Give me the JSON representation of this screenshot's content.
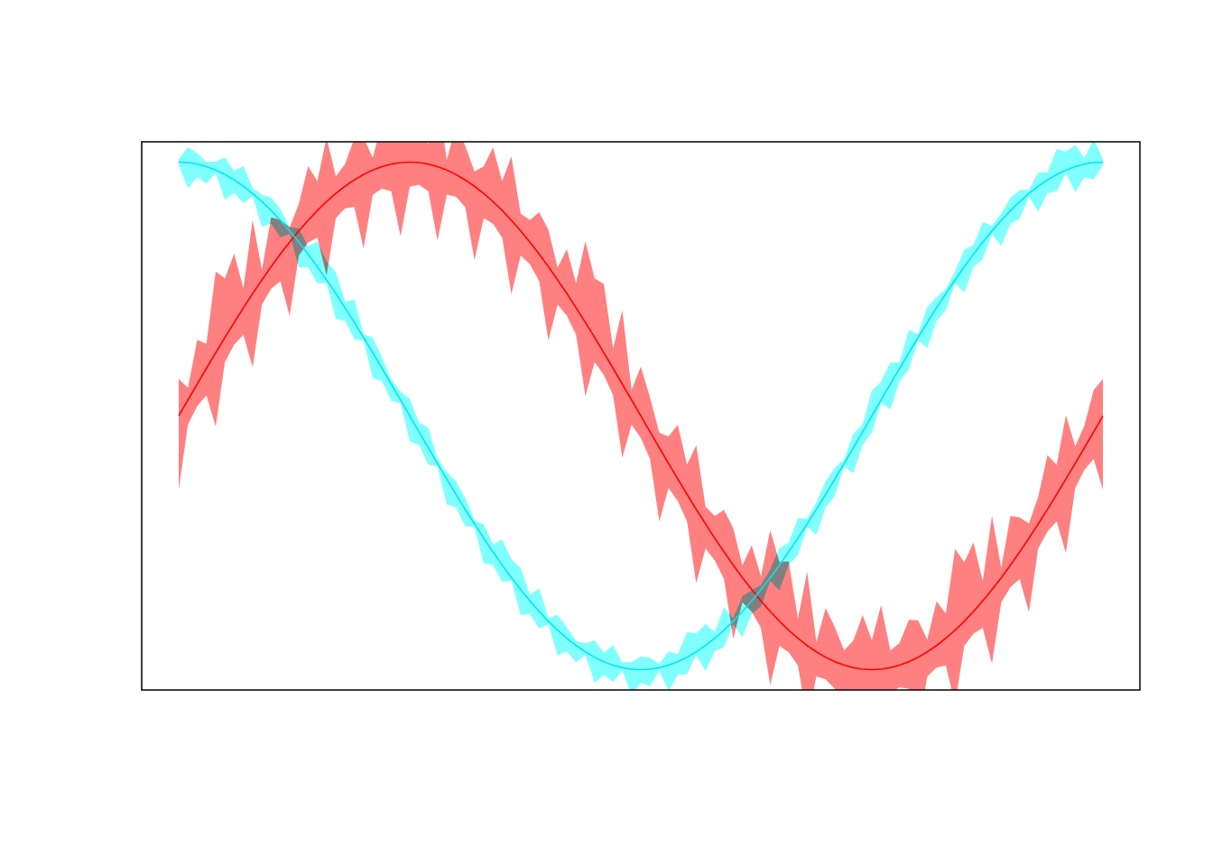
{
  "chart_data": {
    "type": "area",
    "title": "",
    "xlabel": "",
    "ylabel": "",
    "axes_shown": false,
    "grid": false,
    "legend": "none",
    "xlim": [
      0,
      6.283
    ],
    "ylim": [
      -1.08,
      1.08
    ],
    "band_offset_pattern": [
      0.15,
      0.08,
      0.22,
      0.05,
      0.3,
      0.12,
      0.18,
      0.04,
      0.26,
      0.1,
      0.2,
      0.07,
      0.33,
      0.14,
      0.09,
      0.24,
      0.06,
      0.17,
      0.28,
      0.11
    ],
    "series": [
      {
        "color": "#ff0000",
        "band_color": "#ff8080",
        "function": "sin",
        "x": [
          0,
          0.7854,
          1.5708,
          2.3562,
          3.1416,
          3.927,
          4.7124,
          5.4978,
          6.2832
        ],
        "y": [
          0,
          0.707,
          1,
          0.707,
          0,
          -0.707,
          -1,
          -0.707,
          0
        ],
        "band_halfwidth_max": 0.32
      },
      {
        "color": "#00e5ee",
        "band_color": "#80ffff",
        "function": "cos",
        "x": [
          0,
          0.7854,
          1.5708,
          2.3562,
          3.1416,
          3.927,
          4.7124,
          5.4978,
          6.2832
        ],
        "y": [
          1,
          0.707,
          0,
          -0.707,
          -1,
          -0.707,
          0,
          0.707,
          1
        ],
        "band_halfwidth_max": 0.1
      }
    ]
  }
}
